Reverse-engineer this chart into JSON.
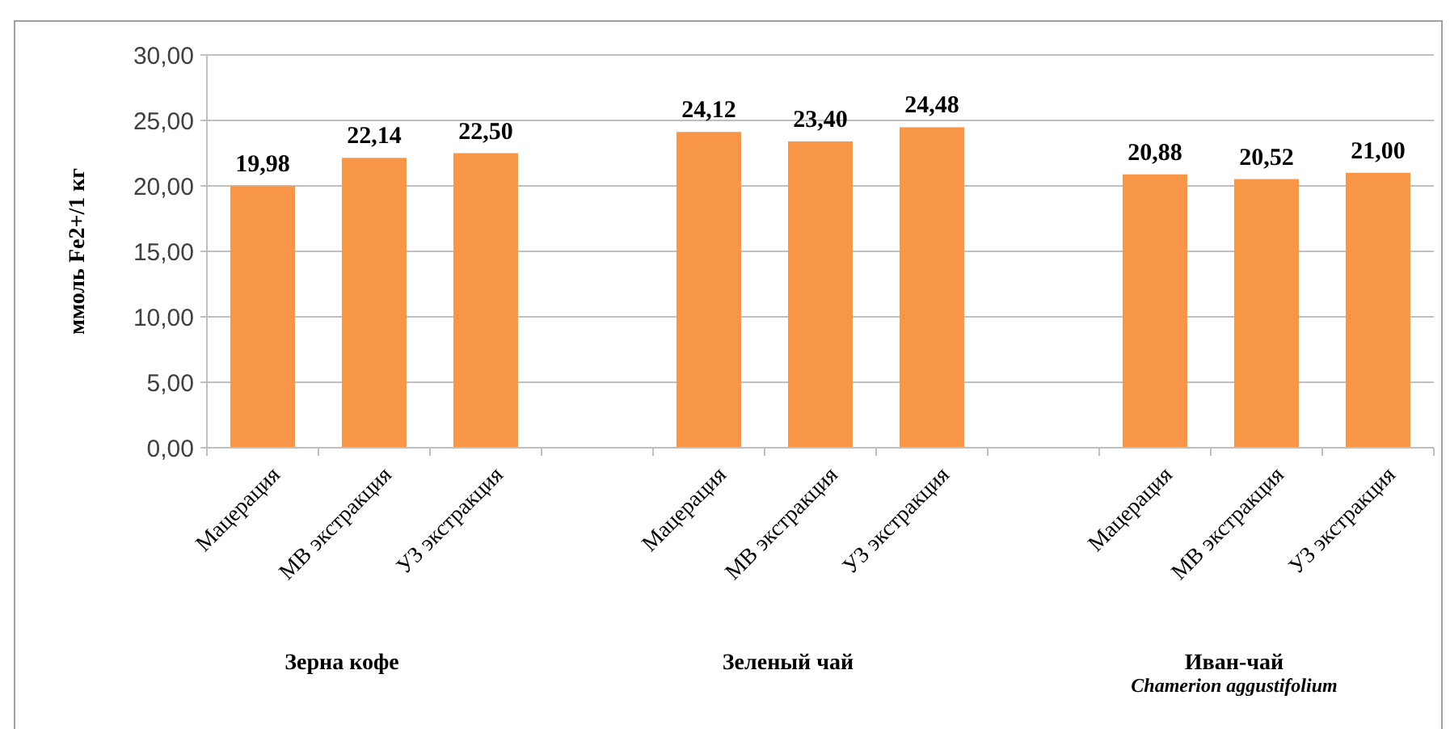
{
  "chart_data": {
    "type": "bar",
    "ylabel": "ммоль Fe2+/1 кг",
    "categories": [
      "Мацерация",
      "МВ экстракция",
      "УЗ экстракция",
      null,
      "Мацерация",
      "МВ экстракция",
      "УЗ экстракция",
      null,
      "Мацерация",
      "МВ экстракция",
      "УЗ экстракция"
    ],
    "values": [
      19.98,
      22.14,
      22.5,
      null,
      24.12,
      23.4,
      24.48,
      null,
      20.88,
      20.52,
      21.0
    ],
    "value_labels": [
      "19,98",
      "22,14",
      "22,50",
      null,
      "24,12",
      "23,40",
      "24,48",
      null,
      "20,88",
      "20,52",
      "21,00"
    ],
    "color": "#f79646",
    "ylim": [
      0,
      30
    ],
    "yticks": [
      {
        "value": 0,
        "label": "0,00"
      },
      {
        "value": 5,
        "label": "5,00"
      },
      {
        "value": 10,
        "label": "10,00"
      },
      {
        "value": 15,
        "label": "15,00"
      },
      {
        "value": 20,
        "label": "20,00"
      },
      {
        "value": 25,
        "label": "25,00"
      },
      {
        "value": 30,
        "label": "30,00"
      }
    ],
    "grid": "y",
    "annotations": [
      "Зерна кофе",
      "Зеленый чай",
      "Иван-чай",
      "Chamerion aggustifolium"
    ]
  }
}
